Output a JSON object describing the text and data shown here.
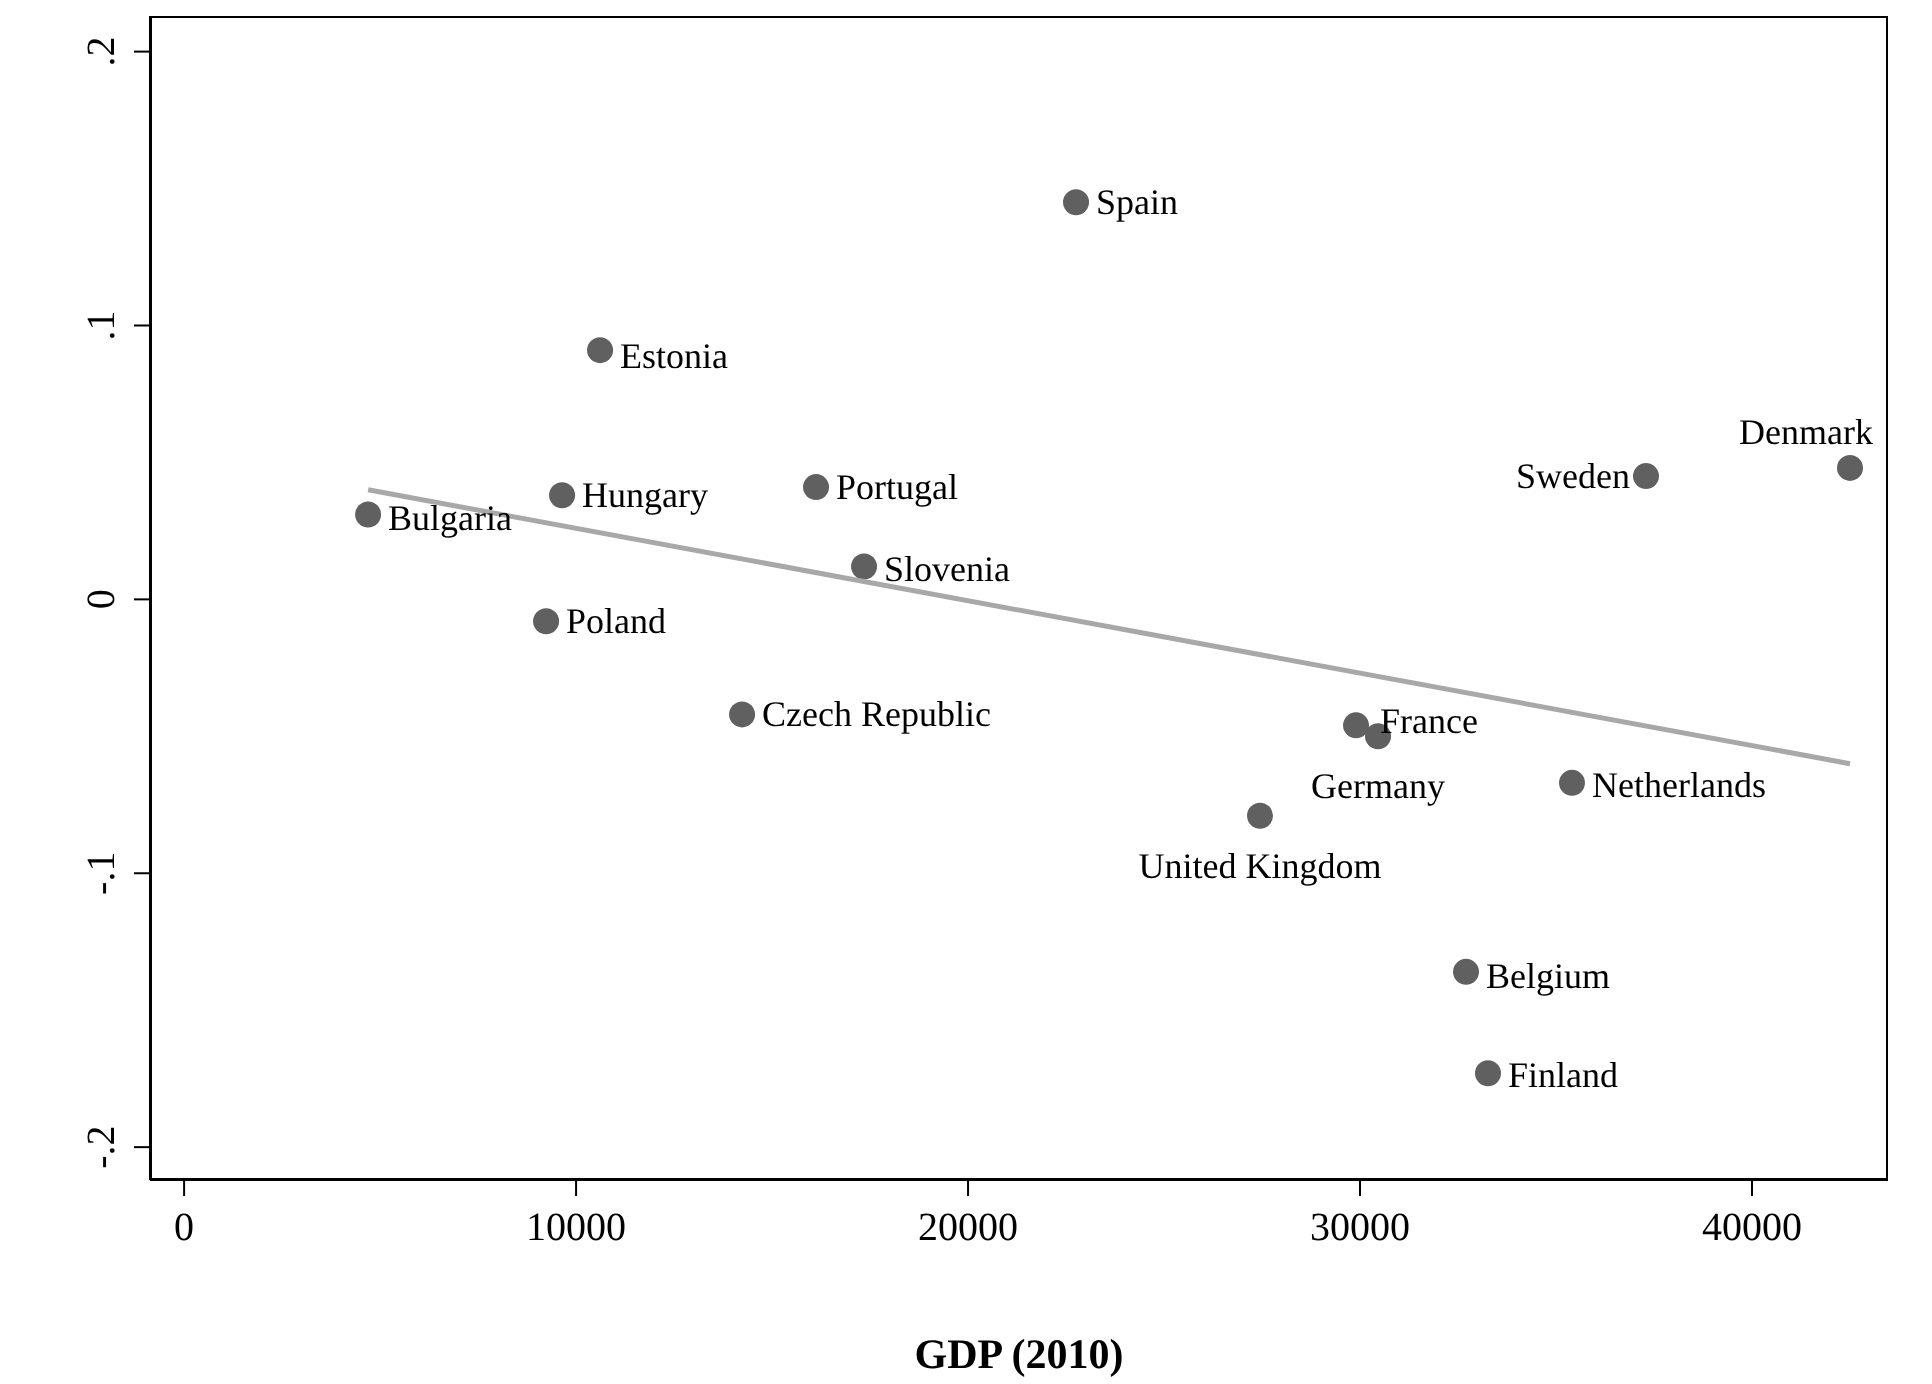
{
  "chart_data": {
    "type": "scatter",
    "xlabel": "GDP (2010)",
    "xlim": [
      -870,
      43470
    ],
    "ylim": [
      -0.212,
      0.213
    ],
    "xticks": [
      0,
      10000,
      20000,
      30000,
      40000
    ],
    "yticks": [
      {
        "value": -0.2,
        "label": "-.2"
      },
      {
        "value": -0.1,
        "label": "-.1"
      },
      {
        "value": 0,
        "label": "0"
      },
      {
        "value": 0.1,
        "label": ".1"
      },
      {
        "value": 0.2,
        "label": ".2"
      }
    ],
    "grid": false,
    "legend": false,
    "marker": "circle",
    "series": [
      {
        "color": "#606060",
        "x": [
          4694,
          9643,
          10612,
          9235,
          14235,
          16122,
          17347,
          22755,
          29898,
          30459,
          27449,
          32704,
          33265,
          35408,
          37296,
          42500
        ],
        "values": [
          0.031,
          0.038,
          0.091,
          -0.008,
          -0.042,
          0.041,
          0.012,
          0.145,
          -0.046,
          -0.05,
          -0.079,
          -0.136,
          -0.173,
          -0.067,
          0.045,
          0.048
        ]
      },
      {
        "type": "line",
        "marker": "none",
        "color": "#a8a8a8",
        "x": [
          4694,
          42500
        ],
        "values": [
          0.04,
          -0.06
        ]
      }
    ],
    "annotations": [
      {
        "text": "Bulgaria",
        "x": 4694,
        "y": 0.031
      },
      {
        "text": "Hungary",
        "x": 9643,
        "y": 0.038
      },
      {
        "text": "Estonia",
        "x": 10612,
        "y": 0.091
      },
      {
        "text": "Poland",
        "x": 9235,
        "y": -0.008
      },
      {
        "text": "Czech Republic",
        "x": 14235,
        "y": -0.042
      },
      {
        "text": "Portugal",
        "x": 16122,
        "y": 0.041
      },
      {
        "text": "Slovenia",
        "x": 17347,
        "y": 0.012
      },
      {
        "text": "Spain",
        "x": 22755,
        "y": 0.145
      },
      {
        "text": "France",
        "x": 29898,
        "y": -0.046
      },
      {
        "text": "Germany",
        "x": 30459,
        "y": -0.05
      },
      {
        "text": "United Kingdom",
        "x": 27449,
        "y": -0.079
      },
      {
        "text": "Belgium",
        "x": 32704,
        "y": -0.136
      },
      {
        "text": "Finland",
        "x": 33265,
        "y": -0.173
      },
      {
        "text": "Netherlands",
        "x": 35408,
        "y": -0.067
      },
      {
        "text": "Sweden",
        "x": 37296,
        "y": 0.045
      },
      {
        "text": "Denmark",
        "x": 42500,
        "y": 0.048
      }
    ]
  }
}
